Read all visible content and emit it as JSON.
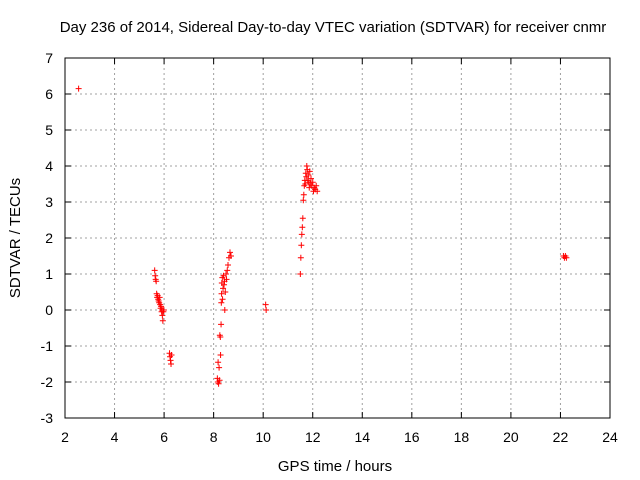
{
  "chart_data": {
    "type": "scatter",
    "title": "Day 236 of 2014, Sidereal Day-to-day VTEC variation (SDTVAR) for receiver cnmr",
    "xlabel": "GPS time / hours",
    "ylabel": "SDTVAR / TECUs",
    "xlim": [
      2,
      24
    ],
    "ylim": [
      -3,
      7
    ],
    "xticks": [
      "2",
      "4",
      "6",
      "8",
      "10",
      "12",
      "14",
      "16",
      "18",
      "20",
      "22",
      "24"
    ],
    "yticks": [
      "-3",
      "-2",
      "-1",
      "0",
      "1",
      "2",
      "3",
      "4",
      "5",
      "6",
      "7"
    ],
    "grid": true,
    "marker": "+",
    "color": "#ff0000",
    "series": [
      {
        "name": "SDTVAR",
        "points": [
          [
            2.55,
            6.15
          ],
          [
            5.62,
            1.1
          ],
          [
            5.64,
            0.95
          ],
          [
            5.66,
            0.85
          ],
          [
            5.68,
            0.8
          ],
          [
            5.7,
            0.45
          ],
          [
            5.72,
            0.35
          ],
          [
            5.74,
            0.4
          ],
          [
            5.76,
            0.3
          ],
          [
            5.78,
            0.25
          ],
          [
            5.8,
            0.2
          ],
          [
            5.82,
            0.35
          ],
          [
            5.84,
            0.15
          ],
          [
            5.86,
            0.05
          ],
          [
            5.88,
            0.1
          ],
          [
            5.9,
            -0.05
          ],
          [
            5.92,
            0.0
          ],
          [
            5.93,
            -0.15
          ],
          [
            5.95,
            -0.3
          ],
          [
            5.97,
            -0.05
          ],
          [
            5.99,
            0.0
          ],
          [
            6.22,
            -1.2
          ],
          [
            6.24,
            -1.3
          ],
          [
            6.26,
            -1.4
          ],
          [
            6.28,
            -1.5
          ],
          [
            6.3,
            -1.25
          ],
          [
            8.15,
            -1.9
          ],
          [
            8.17,
            -2.0
          ],
          [
            8.18,
            -1.45
          ],
          [
            8.2,
            -2.05
          ],
          [
            8.22,
            -1.6
          ],
          [
            8.24,
            -1.95
          ],
          [
            8.25,
            -0.7
          ],
          [
            8.27,
            -0.75
          ],
          [
            8.28,
            -1.25
          ],
          [
            8.3,
            -0.4
          ],
          [
            8.31,
            0.2
          ],
          [
            8.32,
            0.45
          ],
          [
            8.33,
            0.75
          ],
          [
            8.35,
            0.9
          ],
          [
            8.36,
            0.3
          ],
          [
            8.38,
            0.6
          ],
          [
            8.4,
            0.95
          ],
          [
            8.42,
            0.7
          ],
          [
            8.44,
            0.8
          ],
          [
            8.45,
            0.0
          ],
          [
            8.47,
            0.5
          ],
          [
            8.5,
            1.0
          ],
          [
            8.52,
            0.85
          ],
          [
            8.55,
            1.1
          ],
          [
            8.58,
            1.25
          ],
          [
            8.62,
            1.45
          ],
          [
            8.66,
            1.6
          ],
          [
            8.7,
            1.5
          ],
          [
            10.1,
            0.15
          ],
          [
            10.12,
            0.0
          ],
          [
            11.5,
            1.0
          ],
          [
            11.52,
            1.45
          ],
          [
            11.54,
            1.8
          ],
          [
            11.56,
            2.1
          ],
          [
            11.58,
            2.3
          ],
          [
            11.6,
            2.55
          ],
          [
            11.62,
            3.05
          ],
          [
            11.64,
            3.2
          ],
          [
            11.66,
            3.45
          ],
          [
            11.68,
            3.6
          ],
          [
            11.7,
            3.5
          ],
          [
            11.72,
            3.8
          ],
          [
            11.74,
            3.7
          ],
          [
            11.76,
            4.0
          ],
          [
            11.78,
            3.9
          ],
          [
            11.8,
            3.6
          ],
          [
            11.82,
            3.75
          ],
          [
            11.84,
            3.55
          ],
          [
            11.86,
            3.4
          ],
          [
            11.88,
            3.85
          ],
          [
            11.9,
            3.5
          ],
          [
            11.93,
            3.65
          ],
          [
            11.96,
            3.45
          ],
          [
            12.0,
            3.55
          ],
          [
            12.03,
            3.3
          ],
          [
            12.06,
            3.4
          ],
          [
            12.1,
            3.35
          ],
          [
            12.14,
            3.45
          ],
          [
            12.18,
            3.3
          ],
          [
            22.12,
            1.5
          ],
          [
            22.16,
            1.45
          ],
          [
            22.2,
            1.5
          ],
          [
            22.24,
            1.45
          ]
        ]
      }
    ]
  }
}
